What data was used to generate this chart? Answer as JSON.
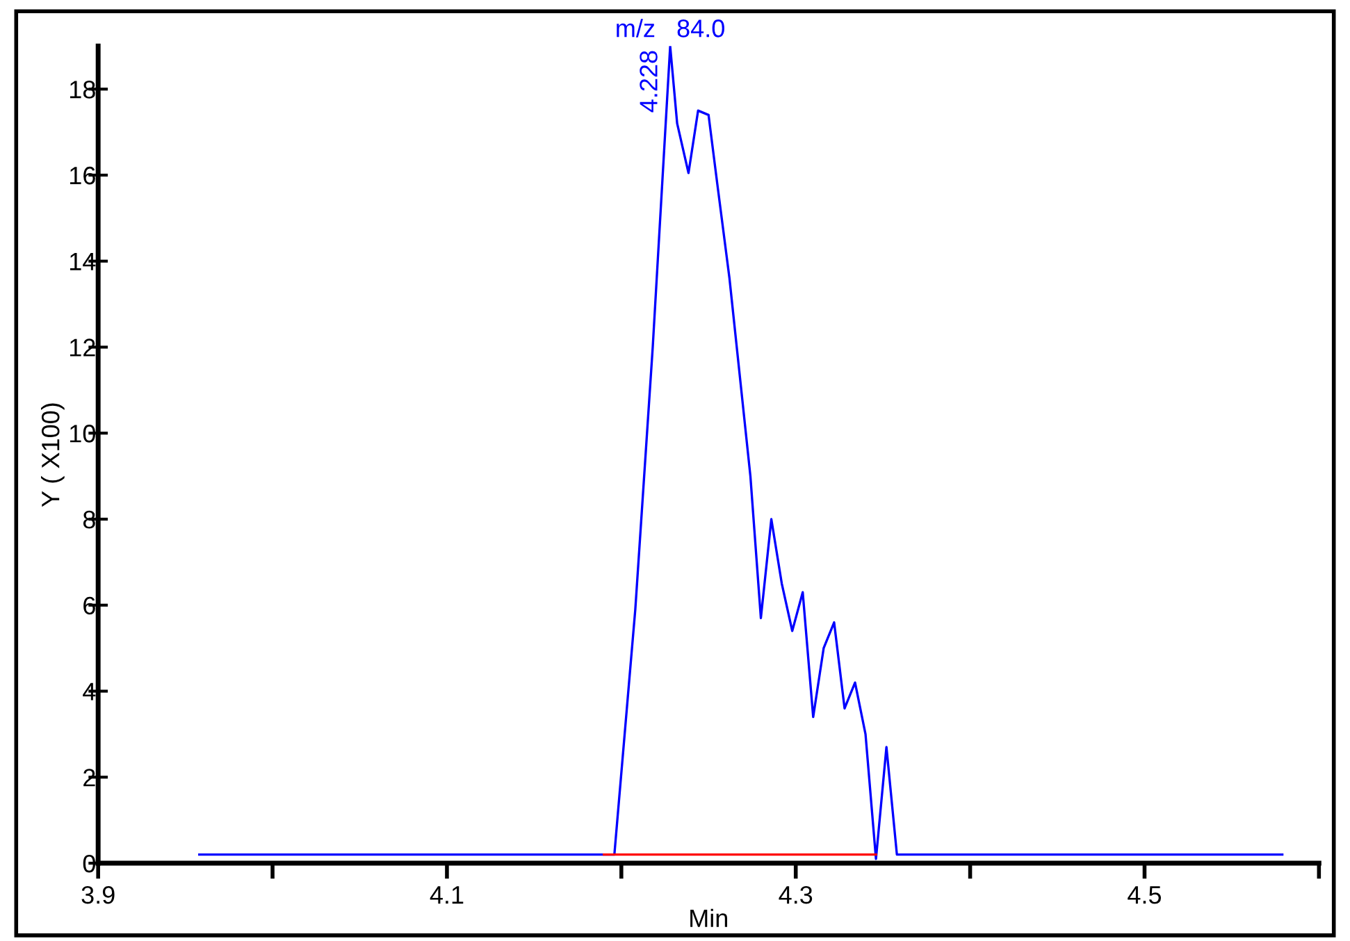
{
  "chart_data": {
    "type": "line",
    "xlabel": "Min",
    "ylabel": "Y ( X100)",
    "xlim": [
      3.9,
      4.6
    ],
    "xticks": [
      3.9,
      {
        "value": 4.0,
        "label": null
      },
      4.1,
      {
        "value": 4.2,
        "label": null
      },
      4.3,
      {
        "value": 4.4,
        "label": null
      },
      4.5,
      {
        "value": 4.6,
        "label": null
      }
    ],
    "ylim": [
      0,
      19
    ],
    "yticks": [
      0,
      2,
      4,
      6,
      8,
      10,
      12,
      14,
      16,
      18
    ],
    "grid": false,
    "annotations": [
      "m/z   84.0",
      {
        "text": "4.228",
        "x": 4.228,
        "y": 19.0
      }
    ],
    "series": [
      {
        "color": "#0000ff",
        "x": [
          3.958,
          4.196,
          4.208,
          4.218,
          4.228,
          4.232,
          4.2385,
          4.244,
          4.25,
          4.255,
          4.262,
          4.274,
          4.28,
          4.286,
          4.292,
          4.298,
          4.304,
          4.31,
          4.316,
          4.322,
          4.328,
          4.334,
          4.34,
          4.346,
          4.352,
          4.358,
          4.579
        ],
        "values": [
          0.2,
          0.2,
          5.9,
          12.0,
          19.0,
          17.2,
          16.05,
          17.5,
          17.4,
          15.8,
          13.6,
          9.0,
          5.7,
          8.0,
          6.5,
          5.4,
          6.3,
          3.4,
          5.0,
          5.6,
          3.6,
          4.2,
          3.0,
          0.1,
          2.7,
          0.2,
          0.2
        ]
      },
      {
        "color": "#ff0000",
        "x": [
          4.19,
          4.346
        ],
        "values": [
          0.2,
          0.2
        ]
      }
    ]
  }
}
